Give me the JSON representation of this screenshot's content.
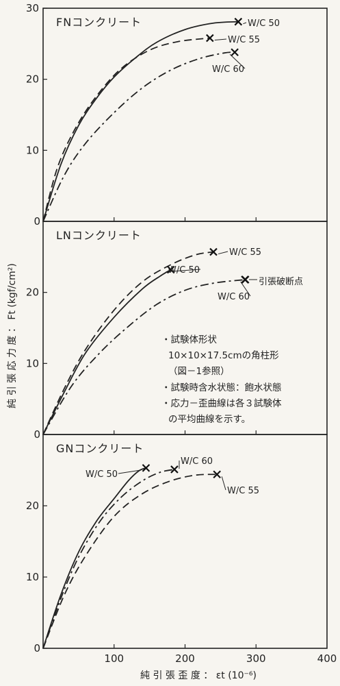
{
  "chart_data": {
    "type": "line",
    "xlabel": "純 引 張 歪 度 ： εt (10⁻⁶)",
    "ylabel": "純 引 張 応 力 度 ： Ft (kgf/cm²)",
    "xlim": [
      0,
      400
    ],
    "x_ticks": [
      "100",
      "200",
      "300",
      "400"
    ],
    "y_ticks": [
      "10",
      "20",
      "30"
    ],
    "grid": false,
    "annotations": {
      "break_point": "引張破断点",
      "notes": [
        "・試験体形状",
        "10×10×17.5cmの角柱形",
        "（図－1参照）",
        "・試験時含水状態：飽水状態",
        "・応力－歪曲線は各３試験体",
        "の平均曲線を示す。"
      ]
    },
    "panels": [
      {
        "title": "FNコンクリート",
        "ylim": [
          0,
          30
        ],
        "series": [
          {
            "name": "W/C 50",
            "style": "solid",
            "points": [
              [
                0,
                0
              ],
              [
                25,
                8
              ],
              [
                50,
                13.5
              ],
              [
                75,
                17.3
              ],
              [
                100,
                20.3
              ],
              [
                130,
                23
              ],
              [
                160,
                25.2
              ],
              [
                200,
                27
              ],
              [
                240,
                27.9
              ],
              [
                275,
                28.1
              ]
            ]
          },
          {
            "name": "W/C 55",
            "style": "dashed",
            "points": [
              [
                0,
                0
              ],
              [
                20,
                7.5
              ],
              [
                45,
                13
              ],
              [
                75,
                17.6
              ],
              [
                110,
                21.5
              ],
              [
                150,
                24.1
              ],
              [
                190,
                25.3
              ],
              [
                235,
                25.8
              ]
            ]
          },
          {
            "name": "W/C 60",
            "style": "dashdot",
            "points": [
              [
                0,
                0
              ],
              [
                30,
                6.5
              ],
              [
                60,
                11
              ],
              [
                100,
                15.3
              ],
              [
                140,
                18.8
              ],
              [
                180,
                21.3
              ],
              [
                220,
                22.9
              ],
              [
                255,
                23.7
              ],
              [
                270,
                23.8
              ]
            ]
          }
        ]
      },
      {
        "title": "LNコンクリート",
        "ylim": [
          0,
          30
        ],
        "series": [
          {
            "name": "W/C 55",
            "style": "dashed",
            "points": [
              [
                0,
                0
              ],
              [
                30,
                6.5
              ],
              [
                60,
                12
              ],
              [
                100,
                17.5
              ],
              [
                140,
                21.5
              ],
              [
                180,
                23.9
              ],
              [
                215,
                25.3
              ],
              [
                240,
                25.7
              ]
            ]
          },
          {
            "name": "W/C 50",
            "style": "solid",
            "points": [
              [
                0,
                0
              ],
              [
                30,
                6
              ],
              [
                60,
                11.5
              ],
              [
                100,
                16.5
              ],
              [
                140,
                20.5
              ],
              [
                165,
                22.3
              ],
              [
                180,
                23.2
              ]
            ]
          },
          {
            "name": "W/C 60",
            "style": "dashdot",
            "points": [
              [
                0,
                0
              ],
              [
                40,
                6.8
              ],
              [
                80,
                11.5
              ],
              [
                120,
                15.2
              ],
              [
                160,
                18.3
              ],
              [
                200,
                20.3
              ],
              [
                240,
                21.3
              ],
              [
                285,
                21.8
              ]
            ]
          }
        ]
      },
      {
        "title": "GNコンクリート",
        "ylim": [
          0,
          30
        ],
        "series": [
          {
            "name": "W/C 50",
            "style": "solid",
            "points": [
              [
                0,
                0
              ],
              [
                25,
                7.5
              ],
              [
                50,
                13.5
              ],
              [
                75,
                17.8
              ],
              [
                100,
                21
              ],
              [
                120,
                23.5
              ],
              [
                135,
                24.9
              ],
              [
                145,
                25.3
              ]
            ]
          },
          {
            "name": "W/C 60",
            "style": "dashdot",
            "points": [
              [
                0,
                0
              ],
              [
                25,
                7
              ],
              [
                50,
                12.8
              ],
              [
                80,
                17.8
              ],
              [
                110,
                21.2
              ],
              [
                140,
                23.5
              ],
              [
                165,
                24.7
              ],
              [
                185,
                25.1
              ]
            ]
          },
          {
            "name": "W/C 55",
            "style": "dashed",
            "points": [
              [
                0,
                0
              ],
              [
                30,
                7.5
              ],
              [
                60,
                13
              ],
              [
                100,
                18.5
              ],
              [
                140,
                21.7
              ],
              [
                180,
                23.5
              ],
              [
                215,
                24.3
              ],
              [
                245,
                24.4
              ]
            ]
          }
        ]
      }
    ]
  }
}
